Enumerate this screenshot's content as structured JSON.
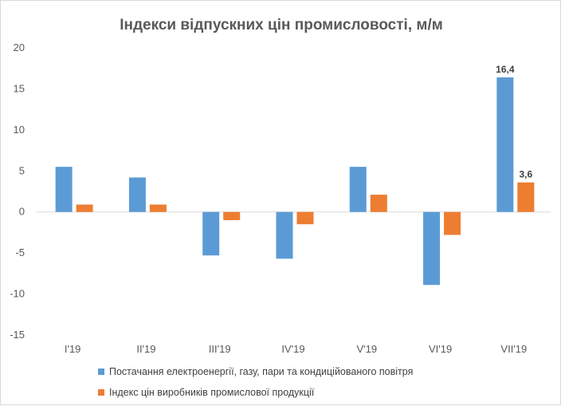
{
  "chart_data": {
    "type": "bar",
    "title": "Індекси відпускних цін промисловості, м/м",
    "categories": [
      "I'19",
      "II'19",
      "III'19",
      "IV'19",
      "V'19",
      "VI'19",
      "VII'19"
    ],
    "series": [
      {
        "name": "Постачання електроенергії,  газу, пари та кондиційованого повітря",
        "color": "#5b9bd5",
        "values": [
          5.5,
          4.2,
          -5.3,
          -5.7,
          5.5,
          -8.9,
          16.4
        ],
        "data_labels": [
          null,
          null,
          null,
          null,
          null,
          null,
          "16,4"
        ]
      },
      {
        "name": "Індекс цін виробників промислової продукції",
        "color": "#ed7d31",
        "values": [
          0.9,
          0.9,
          -1.0,
          -1.5,
          2.1,
          -2.8,
          3.6
        ],
        "data_labels": [
          null,
          null,
          null,
          null,
          null,
          null,
          "3,6"
        ]
      }
    ],
    "ylim": [
      -15,
      20
    ],
    "yticks": [
      -15,
      -10,
      -5,
      0,
      5,
      10,
      15,
      20
    ],
    "grid": false,
    "legend_position": "bottom-left"
  }
}
